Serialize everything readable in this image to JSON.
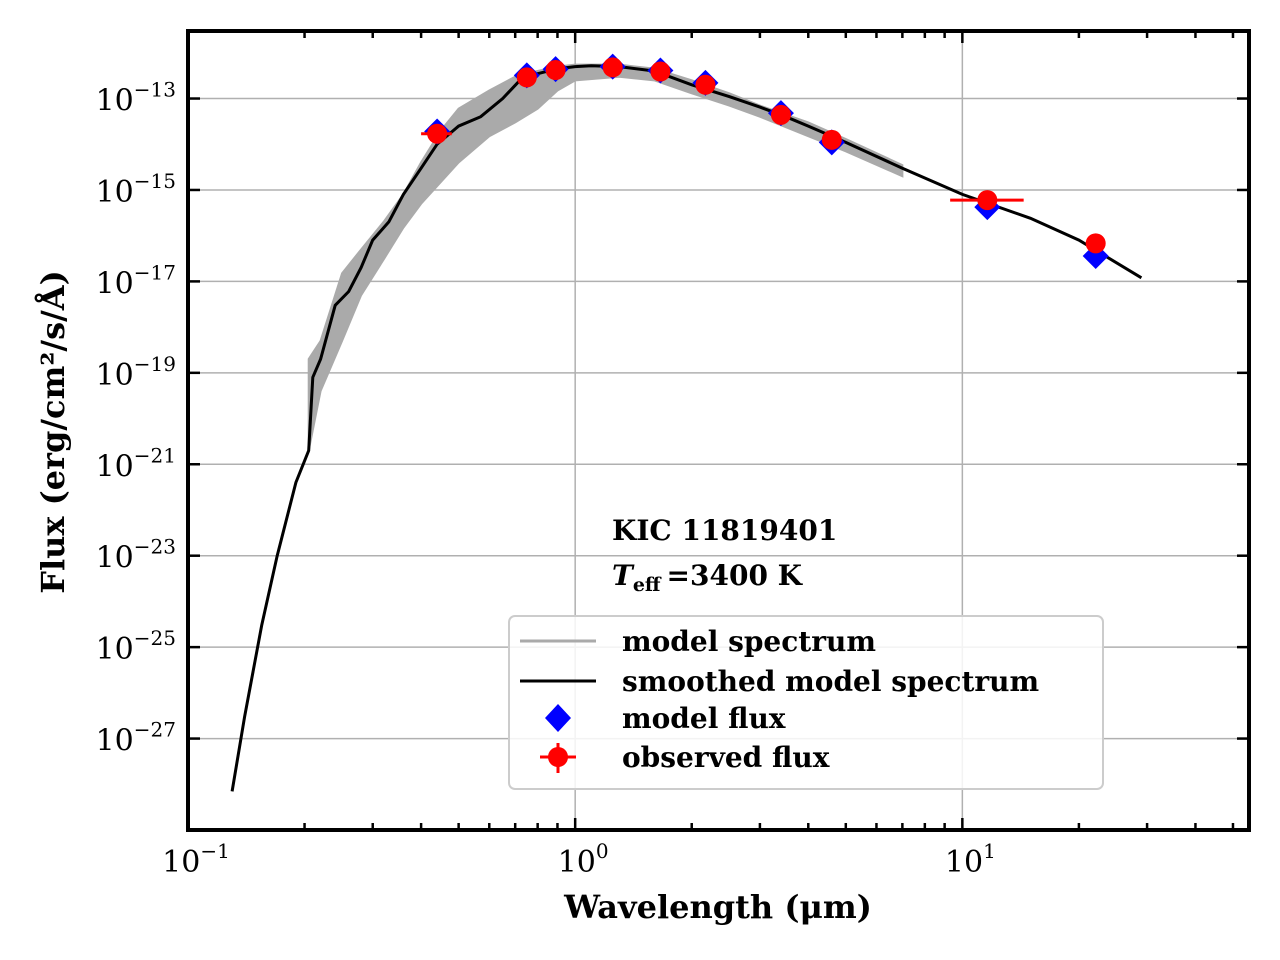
{
  "chart_data": {
    "type": "line",
    "xscale": "log",
    "yscale": "log",
    "xlim": [
      0.1,
      55
    ],
    "ylim": [
      1e-29,
      3e-12
    ],
    "xlabel": "Wavelength (μm)",
    "ylabel": "Flux (erg/cm²/s/Å)",
    "grid": true,
    "x_ticks": [
      {
        "value": 0.1,
        "base": "10",
        "exp": "−1"
      },
      {
        "value": 1,
        "base": "10",
        "exp": "0"
      },
      {
        "value": 10,
        "base": "10",
        "exp": "1"
      }
    ],
    "y_ticks": [
      {
        "value": 1e-13,
        "base": "10",
        "exp": "−13"
      },
      {
        "value": 1e-15,
        "base": "10",
        "exp": "−15"
      },
      {
        "value": 1e-17,
        "base": "10",
        "exp": "−17"
      },
      {
        "value": 1e-19,
        "base": "10",
        "exp": "−19"
      },
      {
        "value": 1e-21,
        "base": "10",
        "exp": "−21"
      },
      {
        "value": 1e-23,
        "base": "10",
        "exp": "−23"
      },
      {
        "value": 1e-25,
        "base": "10",
        "exp": "−25"
      },
      {
        "value": 1e-27,
        "base": "10",
        "exp": "−27"
      }
    ],
    "annotation": {
      "star": "KIC 11819401",
      "teff_symbol": "T",
      "teff_sub": "eff",
      "teff_value": "=3400 K"
    },
    "legend": {
      "position": "lower-right",
      "entries": [
        {
          "label": "model spectrum",
          "color": "#aaaaaa",
          "kind": "line"
        },
        {
          "label": "smoothed model spectrum",
          "color": "#000000",
          "kind": "line"
        },
        {
          "label": "model flux",
          "color": "#0000ff",
          "kind": "diamond"
        },
        {
          "label": "observed flux",
          "color": "#ff0000",
          "kind": "errorpoint"
        }
      ]
    },
    "smoothed_model_spectrum": {
      "x": [
        0.13,
        0.14,
        0.155,
        0.17,
        0.19,
        0.205,
        0.21,
        0.22,
        0.24,
        0.26,
        0.28,
        0.3,
        0.33,
        0.36,
        0.4,
        0.44,
        0.5,
        0.57,
        0.65,
        0.72,
        0.8,
        0.9,
        1.0,
        1.1,
        1.3,
        1.6,
        2.0,
        2.5,
        3.0,
        3.5,
        4.0,
        5.0,
        7.0,
        10.0,
        15.0,
        20.0,
        29.0
      ],
      "y": [
        7e-29,
        3e-27,
        3e-25,
        1e-23,
        4e-22,
        2e-21,
        8e-20,
        2e-19,
        3e-18,
        6e-18,
        2e-17,
        8e-17,
        2e-16,
        8e-16,
        3e-15,
        1e-14,
        2.5e-14,
        4e-14,
        1e-13,
        2.5e-13,
        3.5e-13,
        4.5e-13,
        5e-13,
        5.2e-13,
        5e-13,
        4e-13,
        2e-13,
        1.1e-13,
        6.5e-14,
        4e-14,
        2.5e-14,
        1.1e-14,
        3e-15,
        8e-16,
        2.4e-16,
        8e-17,
        1.2e-17
      ]
    },
    "model_spectrum_band": {
      "x": [
        0.205,
        0.22,
        0.25,
        0.28,
        0.32,
        0.36,
        0.4,
        0.45,
        0.5,
        0.6,
        0.7,
        0.8,
        0.9,
        1.0,
        1.3,
        1.6,
        2.0,
        2.5,
        3.0,
        4.0,
        5.0,
        7.0
      ],
      "upper": [
        2e-19,
        5e-19,
        1.5e-17,
        5e-17,
        2e-16,
        8e-16,
        4e-15,
        2e-14,
        6e-14,
        1.5e-13,
        3e-13,
        4e-13,
        5e-13,
        5.5e-13,
        5.5e-13,
        4.5e-13,
        2.5e-13,
        1.3e-13,
        7e-14,
        3e-14,
        1.3e-14,
        3.5e-15
      ],
      "lower": [
        2e-21,
        4e-20,
        5e-19,
        5e-18,
        3e-17,
        1.5e-16,
        5e-16,
        1.5e-15,
        4e-15,
        1.5e-14,
        3e-14,
        6e-14,
        1.5e-13,
        2.5e-13,
        3e-13,
        2.5e-13,
        1.3e-13,
        7e-14,
        4e-14,
        1.5e-14,
        7e-15,
        2e-15
      ]
    },
    "model_flux": {
      "x": [
        0.44,
        0.75,
        0.89,
        1.25,
        1.66,
        2.17,
        3.4,
        4.6,
        11.6,
        22.1
      ],
      "y": [
        1.9e-14,
        3.2e-13,
        4.4e-13,
        5e-13,
        4.1e-13,
        2.2e-13,
        4.8e-14,
        1.1e-14,
        4.2e-16,
        3.6e-17
      ]
    },
    "observed_flux": {
      "x": [
        0.44,
        0.75,
        0.89,
        1.25,
        1.66,
        2.17,
        3.4,
        4.6,
        11.6,
        22.1
      ],
      "y": [
        1.7e-14,
        2.9e-13,
        4.2e-13,
        4.8e-13,
        3.9e-13,
        2e-13,
        4.4e-14,
        1.25e-14,
        6e-16,
        6.8e-17
      ],
      "xerr_lo": [
        0.04,
        0.03,
        0.03,
        0.04,
        0.04,
        0.04,
        0.1,
        0.2,
        2.3,
        0.6
      ],
      "xerr_hi": [
        0.04,
        0.03,
        0.03,
        0.04,
        0.04,
        0.04,
        0.1,
        0.2,
        2.8,
        0.7
      ]
    }
  },
  "colors": {
    "model_spectrum": "#aaaaaa",
    "smoothed": "#000000",
    "model_flux": "#0000ff",
    "observed_flux": "#ff0000",
    "grid": "#b0b0b0"
  }
}
